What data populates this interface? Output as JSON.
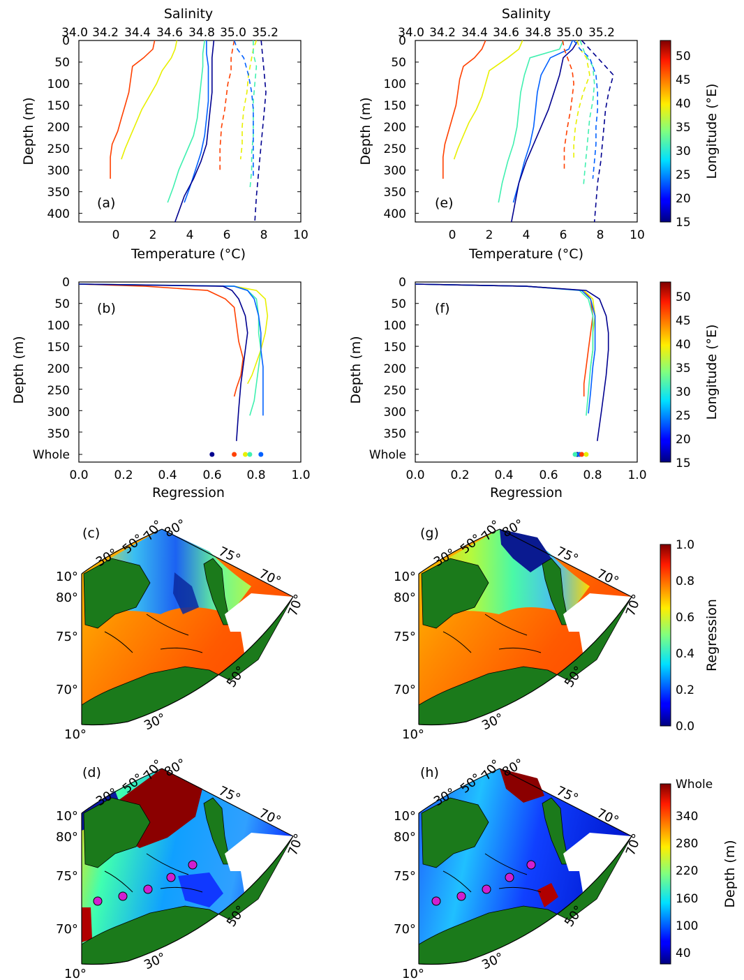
{
  "panel_labels": {
    "a": "(a)",
    "b": "(b)",
    "c": "(c)",
    "d": "(d)",
    "e": "(e)",
    "f": "(f)",
    "g": "(g)",
    "h": "(h)"
  },
  "profile_axes": {
    "top_label": "Salinity",
    "top_ticks": [
      "34.0",
      "34.2",
      "34.4",
      "34.6",
      "34.8",
      "35.0",
      "35.2"
    ],
    "bottom_label": "Temperature (°C)",
    "bottom_ticks": [
      "0",
      "2",
      "4",
      "6",
      "8",
      "10"
    ],
    "y_label": "Depth (m)",
    "y_ticks": [
      "0",
      "50",
      "100",
      "150",
      "200",
      "250",
      "300",
      "350",
      "400"
    ]
  },
  "regression_axes": {
    "x_label": "Regression",
    "x_ticks": [
      "0.0",
      "0.2",
      "0.4",
      "0.6",
      "0.8",
      "1.0"
    ],
    "y_label": "Depth (m)",
    "y_ticks": [
      "0",
      "50",
      "100",
      "150",
      "200",
      "250",
      "300",
      "350",
      "Whole"
    ]
  },
  "colorbars": {
    "longitude": {
      "label": "Longitude (°E)",
      "ticks": [
        "50",
        "45",
        "40",
        "35",
        "30",
        "25",
        "20",
        "15"
      ],
      "range": [
        15,
        53
      ]
    },
    "regression": {
      "label": "Regression",
      "ticks": [
        "1.0",
        "0.8",
        "0.6",
        "0.4",
        "0.2",
        "0.0"
      ],
      "range": [
        0,
        1
      ]
    },
    "depth": {
      "label": "Depth (m)",
      "ticks": [
        "Whole",
        "340",
        "280",
        "220",
        "160",
        "100",
        "40"
      ],
      "range": [
        10,
        400
      ]
    }
  },
  "map_labels": {
    "top": [
      "10°",
      "30°",
      "50°",
      "70°",
      "80°"
    ],
    "meridian_right": [
      "75°",
      "70°"
    ],
    "lat_left": [
      "80°",
      "75°",
      "70°"
    ],
    "right_edge": "70°",
    "lon_bottom": [
      "50°",
      "30°",
      "10°"
    ]
  },
  "chart_data": [
    {
      "panel": "(a)",
      "type": "line",
      "xlim_temperature": [
        -2,
        10
      ],
      "xlim_salinity": [
        34.0,
        35.4
      ],
      "ylim": [
        420,
        0
      ],
      "series": [
        {
          "kind": "temperature",
          "color": "#ff4000",
          "x": [
            2.1,
            2.0,
            1.5,
            0.9,
            0.8,
            0.7,
            0.5,
            0.3,
            0.1,
            -0.2,
            -0.3,
            -0.3
          ],
          "y": [
            0,
            20,
            40,
            60,
            90,
            120,
            150,
            180,
            210,
            240,
            270,
            320
          ]
        },
        {
          "kind": "temperature",
          "color": "#e8f000",
          "x": [
            3.3,
            3.2,
            3.0,
            2.5,
            2.2,
            1.8,
            1.4,
            1.1,
            0.8,
            0.5,
            0.3
          ],
          "y": [
            0,
            20,
            40,
            70,
            100,
            130,
            160,
            190,
            220,
            250,
            275
          ]
        },
        {
          "kind": "temperature",
          "color": "#40f0b0",
          "x": [
            4.8,
            4.7,
            4.7,
            4.6,
            4.5,
            4.4,
            4.2,
            3.8,
            3.4,
            3.1,
            2.8
          ],
          "y": [
            0,
            30,
            60,
            100,
            140,
            180,
            220,
            260,
            300,
            340,
            375
          ]
        },
        {
          "kind": "temperature",
          "color": "#0060ff",
          "x": [
            4.9,
            4.9,
            5.0,
            5.0,
            5.0,
            4.9,
            4.8,
            4.6,
            4.3,
            4.0,
            3.7
          ],
          "y": [
            0,
            30,
            60,
            100,
            140,
            180,
            220,
            260,
            300,
            340,
            375
          ]
        },
        {
          "kind": "temperature",
          "color": "#00008f",
          "x": [
            5.3,
            5.2,
            5.2,
            5.2,
            5.1,
            5.0,
            4.9,
            4.6,
            4.2,
            3.7,
            3.2
          ],
          "y": [
            0,
            40,
            80,
            120,
            160,
            200,
            240,
            280,
            320,
            360,
            420
          ]
        },
        {
          "kind": "salinity",
          "color": "#ff4000",
          "x": [
            34.98,
            34.97,
            34.96,
            34.96,
            34.94,
            34.93,
            34.92,
            34.9,
            34.89,
            34.89
          ],
          "y": [
            0,
            20,
            40,
            70,
            100,
            130,
            160,
            200,
            250,
            300
          ]
        },
        {
          "kind": "salinity",
          "color": "#e8f000",
          "x": [
            35.12,
            35.1,
            35.09,
            35.07,
            35.06,
            35.04,
            35.03,
            35.03,
            35.02
          ],
          "y": [
            0,
            20,
            40,
            80,
            120,
            160,
            200,
            240,
            275
          ]
        },
        {
          "kind": "salinity",
          "color": "#40f0b0",
          "x": [
            35.1,
            35.1,
            35.12,
            35.11,
            35.1,
            35.1,
            35.1,
            35.09,
            35.09,
            35.08
          ],
          "y": [
            0,
            30,
            60,
            100,
            140,
            180,
            220,
            260,
            300,
            340
          ]
        },
        {
          "kind": "salinity",
          "color": "#0060ff",
          "x": [
            34.98,
            35.0,
            35.04,
            35.07,
            35.09,
            35.1,
            35.1,
            35.1,
            35.1,
            35.1
          ],
          "y": [
            0,
            20,
            40,
            80,
            120,
            160,
            200,
            240,
            280,
            320
          ]
        },
        {
          "kind": "salinity",
          "color": "#00008f",
          "x": [
            35.15,
            35.16,
            35.17,
            35.18,
            35.17,
            35.16,
            35.15,
            35.14,
            35.13,
            35.12,
            35.11
          ],
          "y": [
            0,
            40,
            80,
            120,
            160,
            200,
            240,
            280,
            320,
            360,
            420
          ]
        }
      ]
    },
    {
      "panel": "(e)",
      "type": "line",
      "xlim_temperature": [
        -2,
        10
      ],
      "xlim_salinity": [
        34.0,
        35.4
      ],
      "ylim": [
        420,
        0
      ],
      "series": [
        {
          "kind": "temperature",
          "color": "#ff4000",
          "x": [
            1.8,
            1.6,
            1.2,
            0.6,
            0.4,
            0.3,
            0.2,
            0.0,
            -0.2,
            -0.4,
            -0.5,
            -0.5
          ],
          "y": [
            0,
            20,
            40,
            60,
            90,
            120,
            150,
            180,
            210,
            240,
            270,
            320
          ]
        },
        {
          "kind": "temperature",
          "color": "#e8f000",
          "x": [
            3.8,
            3.6,
            3.0,
            2.0,
            1.8,
            1.6,
            1.3,
            0.9,
            0.6,
            0.3,
            0.1
          ],
          "y": [
            0,
            20,
            40,
            70,
            100,
            130,
            160,
            190,
            220,
            250,
            275
          ]
        },
        {
          "kind": "temperature",
          "color": "#40f0b0",
          "x": [
            6.0,
            5.8,
            4.2,
            3.9,
            3.7,
            3.6,
            3.5,
            3.3,
            3.0,
            2.7,
            2.5
          ],
          "y": [
            0,
            20,
            40,
            80,
            120,
            160,
            200,
            240,
            280,
            330,
            375
          ]
        },
        {
          "kind": "temperature",
          "color": "#0060ff",
          "x": [
            6.5,
            6.3,
            5.3,
            4.8,
            4.6,
            4.5,
            4.4,
            4.2,
            3.9,
            3.6,
            3.3
          ],
          "y": [
            0,
            20,
            40,
            80,
            120,
            160,
            200,
            240,
            280,
            330,
            375
          ]
        },
        {
          "kind": "temperature",
          "color": "#00008f",
          "x": [
            6.8,
            6.5,
            6.0,
            5.8,
            5.5,
            5.2,
            4.8,
            4.4,
            4.0,
            3.6,
            3.2
          ],
          "y": [
            0,
            20,
            40,
            80,
            120,
            160,
            200,
            240,
            280,
            330,
            420
          ]
        },
        {
          "kind": "salinity",
          "color": "#ff4000",
          "x": [
            34.93,
            34.94,
            34.96,
            34.99,
            35.0,
            34.99,
            34.98,
            34.96,
            34.94,
            34.94
          ],
          "y": [
            0,
            20,
            40,
            70,
            100,
            130,
            160,
            200,
            250,
            300
          ]
        },
        {
          "kind": "salinity",
          "color": "#e8f000",
          "x": [
            35.02,
            35.04,
            35.08,
            35.1,
            35.06,
            35.03,
            35.01,
            35.0,
            35.0
          ],
          "y": [
            0,
            20,
            40,
            80,
            120,
            160,
            200,
            240,
            275
          ]
        },
        {
          "kind": "salinity",
          "color": "#40f0b0",
          "x": [
            35.04,
            35.07,
            35.12,
            35.13,
            35.12,
            35.1,
            35.09,
            35.08,
            35.07,
            35.06
          ],
          "y": [
            0,
            30,
            60,
            100,
            140,
            180,
            220,
            260,
            300,
            340
          ]
        },
        {
          "kind": "salinity",
          "color": "#0060ff",
          "x": [
            35.0,
            35.04,
            35.1,
            35.14,
            35.15,
            35.15,
            35.14,
            35.14,
            35.13,
            35.12
          ],
          "y": [
            0,
            20,
            40,
            80,
            120,
            160,
            200,
            240,
            280,
            320
          ]
        },
        {
          "kind": "salinity",
          "color": "#00008f",
          "x": [
            35.05,
            35.1,
            35.2,
            35.25,
            35.22,
            35.2,
            35.19,
            35.18,
            35.17,
            35.15,
            35.13
          ],
          "y": [
            0,
            20,
            60,
            80,
            120,
            160,
            200,
            240,
            280,
            330,
            420
          ]
        }
      ]
    },
    {
      "panel": "(b)",
      "type": "line",
      "xlim": [
        0,
        1
      ],
      "ylim": [
        420,
        0
      ],
      "series": [
        {
          "color": "#ff4000",
          "x": [
            0.0,
            0.3,
            0.58,
            0.66,
            0.7,
            0.71,
            0.72,
            0.74,
            0.73,
            0.71,
            0.7
          ],
          "y": [
            5,
            10,
            20,
            40,
            60,
            100,
            140,
            180,
            220,
            250,
            270
          ]
        },
        {
          "color": "#e8f000",
          "x": [
            0.0,
            0.7,
            0.8,
            0.84,
            0.85,
            0.84,
            0.82,
            0.8,
            0.78,
            0.76
          ],
          "y": [
            5,
            10,
            20,
            40,
            80,
            120,
            160,
            190,
            220,
            240
          ]
        },
        {
          "color": "#40f0b0",
          "x": [
            0.0,
            0.7,
            0.76,
            0.8,
            0.81,
            0.81,
            0.82,
            0.81,
            0.8,
            0.79,
            0.77
          ],
          "y": [
            5,
            10,
            20,
            40,
            80,
            120,
            160,
            200,
            240,
            280,
            315
          ]
        },
        {
          "color": "#0060ff",
          "x": [
            0.0,
            0.7,
            0.76,
            0.79,
            0.81,
            0.82,
            0.82,
            0.83,
            0.83,
            0.83,
            0.83
          ],
          "y": [
            5,
            10,
            20,
            40,
            80,
            120,
            160,
            200,
            240,
            280,
            315
          ]
        },
        {
          "color": "#00008f",
          "x": [
            0.0,
            0.65,
            0.69,
            0.72,
            0.75,
            0.76,
            0.75,
            0.74,
            0.73,
            0.72,
            0.71
          ],
          "y": [
            5,
            10,
            20,
            40,
            80,
            120,
            160,
            200,
            240,
            300,
            375
          ]
        }
      ],
      "whole": [
        {
          "color": "#00008f",
          "value": 0.6
        },
        {
          "color": "#ff4000",
          "value": 0.7
        },
        {
          "color": "#e8f000",
          "value": 0.75
        },
        {
          "color": "#40f0b0",
          "value": 0.77
        },
        {
          "color": "#0060ff",
          "value": 0.82
        }
      ]
    },
    {
      "panel": "(f)",
      "type": "line",
      "xlim": [
        0,
        1
      ],
      "ylim": [
        420,
        0
      ],
      "series": [
        {
          "color": "#ff4000",
          "x": [
            0.0,
            0.5,
            0.76,
            0.79,
            0.8,
            0.79,
            0.78,
            0.77,
            0.76,
            0.76
          ],
          "y": [
            5,
            10,
            20,
            40,
            80,
            120,
            160,
            200,
            240,
            270
          ]
        },
        {
          "color": "#e8f000",
          "x": [
            0.0,
            0.5,
            0.76,
            0.8,
            0.81,
            0.8,
            0.8,
            0.79
          ],
          "y": [
            5,
            10,
            20,
            40,
            80,
            120,
            160,
            200
          ]
        },
        {
          "color": "#40f0b0",
          "x": [
            0.0,
            0.5,
            0.74,
            0.78,
            0.8,
            0.8,
            0.8,
            0.79,
            0.78,
            0.77
          ],
          "y": [
            5,
            10,
            20,
            40,
            80,
            120,
            160,
            200,
            260,
            315
          ]
        },
        {
          "color": "#0060ff",
          "x": [
            0.0,
            0.5,
            0.75,
            0.79,
            0.81,
            0.81,
            0.81,
            0.8,
            0.79,
            0.78
          ],
          "y": [
            5,
            10,
            20,
            40,
            80,
            120,
            160,
            200,
            260,
            310
          ]
        },
        {
          "color": "#00008f",
          "x": [
            0.0,
            0.5,
            0.77,
            0.83,
            0.86,
            0.87,
            0.87,
            0.86,
            0.84,
            0.82
          ],
          "y": [
            5,
            10,
            20,
            40,
            80,
            120,
            160,
            220,
            300,
            375
          ]
        }
      ],
      "whole": [
        {
          "color": "#00008f",
          "value": 0.73
        },
        {
          "color": "#40f0b0",
          "value": 0.72
        },
        {
          "color": "#0060ff",
          "value": 0.74
        },
        {
          "color": "#ff4000",
          "value": 0.75
        },
        {
          "color": "#e8f000",
          "value": 0.77
        }
      ]
    }
  ]
}
